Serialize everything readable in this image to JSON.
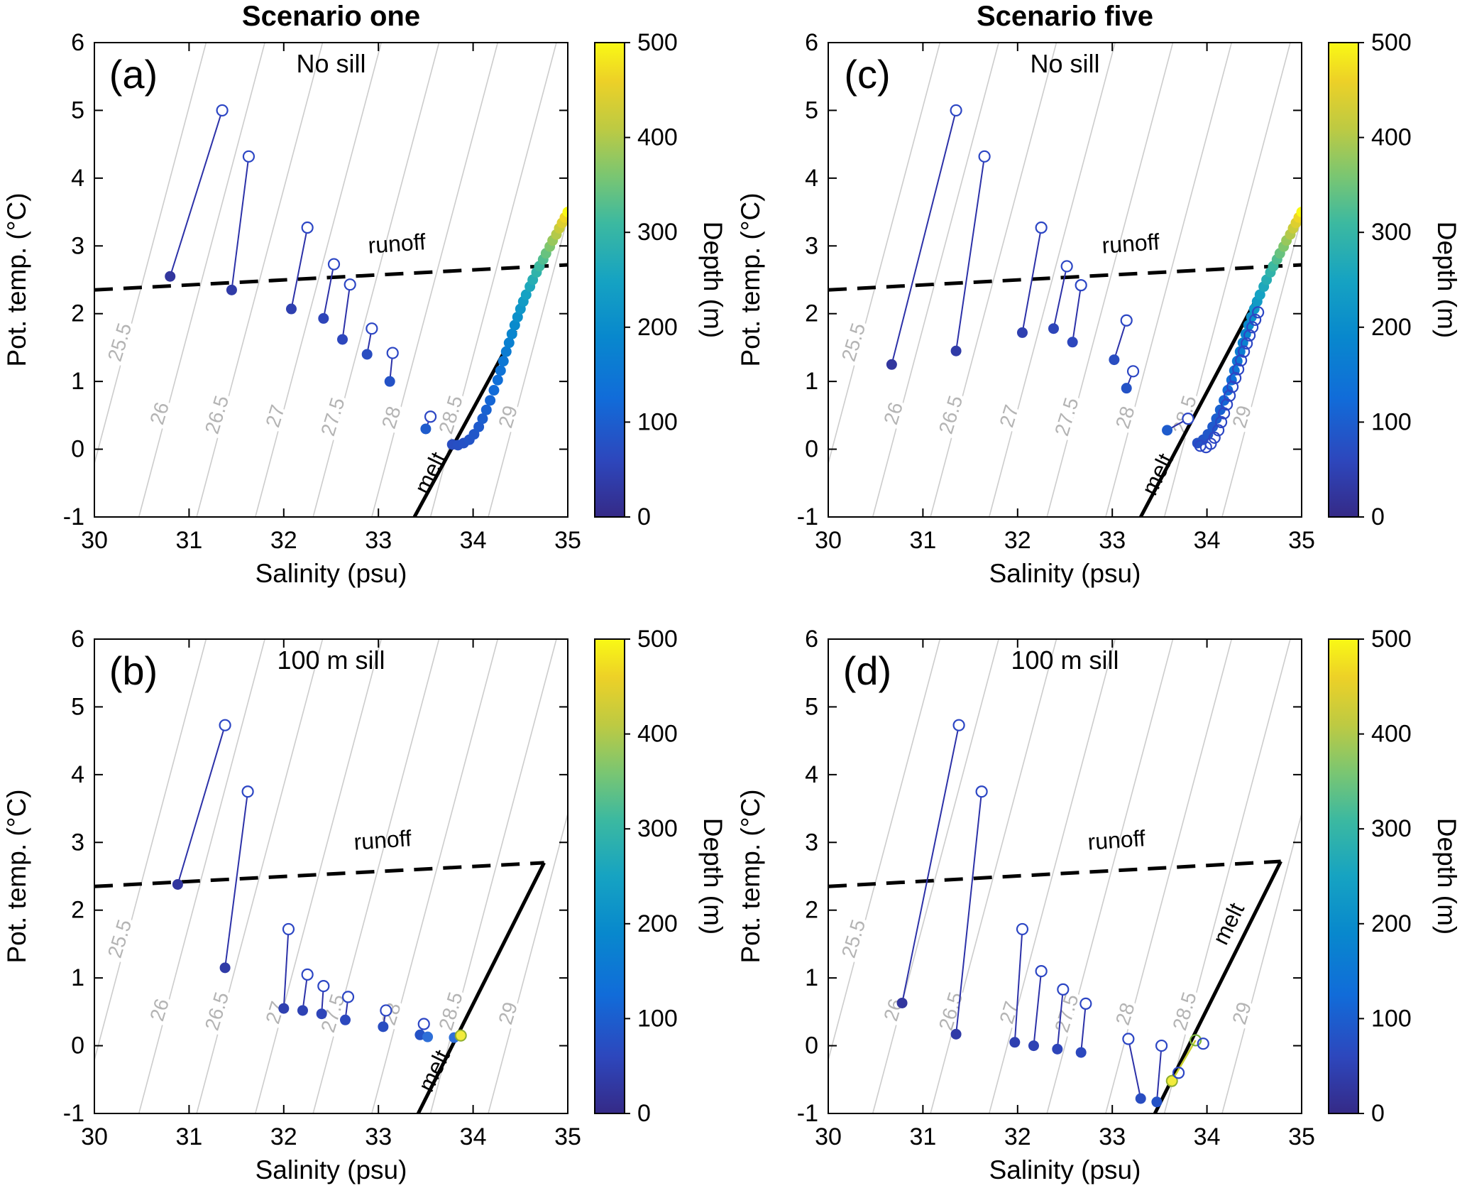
{
  "chart_data": {
    "type": "scatter",
    "title": "",
    "xlabel": "Salinity (psu)",
    "ylabel": "Pot. temp. (°C)",
    "xlim": [
      30,
      35
    ],
    "ylim": [
      -1,
      6
    ],
    "x_ticks": [
      30,
      31,
      32,
      33,
      34,
      35
    ],
    "y_ticks": [
      -1,
      0,
      1,
      2,
      3,
      4,
      5,
      6
    ],
    "grid": false,
    "colorbar": {
      "label": "Depth (m)",
      "ticks": [
        0,
        100,
        200,
        300,
        400,
        500
      ],
      "lim": [
        0,
        500
      ],
      "colormap": [
        [
          0.0,
          "#352a87"
        ],
        [
          0.12,
          "#2d47bd"
        ],
        [
          0.25,
          "#116cd9"
        ],
        [
          0.38,
          "#0888cd"
        ],
        [
          0.5,
          "#16a3c2"
        ],
        [
          0.62,
          "#3cb9a0"
        ],
        [
          0.72,
          "#7bc671"
        ],
        [
          0.82,
          "#beca42"
        ],
        [
          0.92,
          "#edd127"
        ],
        [
          1.0,
          "#f9f915"
        ]
      ]
    },
    "isopycnals": {
      "labels": [
        "25.5",
        "26",
        "26.5",
        "27",
        "27.5",
        "28",
        "28.5",
        "29"
      ],
      "s_at_tmin": [
        29.85,
        30.47,
        31.08,
        31.7,
        32.31,
        32.93,
        33.55,
        34.16
      ],
      "ds_dt": 0.19,
      "label_t": [
        1.55,
        0.5,
        0.48,
        0.46,
        0.45,
        0.44,
        0.48,
        0.45
      ],
      "line_color": "#cccccc",
      "label_color": "#b4b4b4"
    },
    "marker_colors": {
      "pair_line": "#2c31a8",
      "open_stroke": "#2c46c4",
      "special_yellow": "#f2eb3c",
      "special_yellow_edge": "#8fae2e",
      "special_green_edge": "#7ab33c",
      "plain_blue": "#2e6fd8"
    },
    "panels": [
      {
        "id": "a",
        "letter": "(a)",
        "title": "No sill",
        "column_title": "Scenario one",
        "row": 0,
        "col": 0,
        "runoff": {
          "label": "runoff",
          "x": [
            30,
            35
          ],
          "y": [
            2.35,
            2.72
          ],
          "label_pos": [
            33.2,
            2.92
          ],
          "label_rot": -4
        },
        "melt": {
          "label": "melt",
          "x": [
            33.38,
            34.45
          ],
          "y": [
            -1,
            1.75
          ],
          "label_pos": [
            33.62,
            -0.4
          ],
          "label_rot": -64
        },
        "pairs": [
          {
            "o": [
              31.35,
              5.0
            ],
            "f": [
              30.8,
              2.55
            ],
            "d": 25
          },
          {
            "o": [
              31.63,
              4.32
            ],
            "f": [
              31.45,
              2.35
            ],
            "d": 35
          },
          {
            "o": [
              32.25,
              3.27
            ],
            "f": [
              32.08,
              2.07
            ],
            "d": 45
          },
          {
            "o": [
              32.53,
              2.73
            ],
            "f": [
              32.42,
              1.93
            ],
            "d": 55
          },
          {
            "o": [
              32.7,
              2.43
            ],
            "f": [
              32.62,
              1.62
            ],
            "d": 60
          },
          {
            "o": [
              32.93,
              1.78
            ],
            "f": [
              32.88,
              1.4
            ],
            "d": 70
          },
          {
            "o": [
              33.15,
              1.42
            ],
            "f": [
              33.12,
              1.0
            ],
            "d": 80
          },
          {
            "o": [
              33.55,
              0.48
            ],
            "f": [
              33.5,
              0.3
            ],
            "d": 95
          }
        ],
        "mixing_curve": [
          [
            33.78,
            0.07,
            70
          ],
          [
            33.84,
            0.06,
            74
          ],
          [
            33.9,
            0.09,
            78
          ],
          [
            33.96,
            0.14,
            83
          ],
          [
            34.01,
            0.22,
            88
          ],
          [
            34.06,
            0.33,
            94
          ],
          [
            34.1,
            0.45,
            100
          ],
          [
            34.14,
            0.58,
            107
          ],
          [
            34.18,
            0.72,
            115
          ],
          [
            34.22,
            0.87,
            123
          ],
          [
            34.26,
            1.02,
            132
          ],
          [
            34.29,
            1.16,
            141
          ],
          [
            34.32,
            1.3,
            151
          ],
          [
            34.35,
            1.44,
            161
          ],
          [
            34.38,
            1.57,
            172
          ],
          [
            34.41,
            1.7,
            183
          ],
          [
            34.44,
            1.83,
            195
          ],
          [
            34.47,
            1.95,
            207
          ],
          [
            34.5,
            2.07,
            220
          ],
          [
            34.53,
            2.18,
            233
          ],
          [
            34.56,
            2.28,
            247
          ],
          [
            34.6,
            2.4,
            262
          ],
          [
            34.63,
            2.5,
            277
          ],
          [
            34.67,
            2.61,
            293
          ],
          [
            34.7,
            2.7,
            310
          ],
          [
            34.74,
            2.8,
            327
          ],
          [
            34.77,
            2.89,
            345
          ],
          [
            34.81,
            2.99,
            363
          ],
          [
            34.84,
            3.08,
            382
          ],
          [
            34.88,
            3.17,
            402
          ],
          [
            34.91,
            3.26,
            422
          ],
          [
            34.94,
            3.34,
            443
          ],
          [
            34.97,
            3.42,
            465
          ],
          [
            35.0,
            3.5,
            500
          ]
        ],
        "open_curve": [],
        "special_points": [],
        "special_segments": []
      },
      {
        "id": "c",
        "letter": "(c)",
        "title": "No sill",
        "column_title": "Scenario five",
        "row": 0,
        "col": 1,
        "runoff": {
          "label": "runoff",
          "x": [
            30,
            35
          ],
          "y": [
            2.35,
            2.72
          ],
          "label_pos": [
            33.2,
            2.92
          ],
          "label_rot": -4
        },
        "melt": {
          "label": "melt",
          "x": [
            33.3,
            34.8
          ],
          "y": [
            -1,
            2.95
          ],
          "label_pos": [
            33.55,
            -0.42
          ],
          "label_rot": -64
        },
        "pairs": [
          {
            "o": [
              31.35,
              5.0
            ],
            "f": [
              30.67,
              1.25
            ],
            "d": 25
          },
          {
            "o": [
              31.65,
              4.32
            ],
            "f": [
              31.35,
              1.45
            ],
            "d": 35
          },
          {
            "o": [
              32.25,
              3.27
            ],
            "f": [
              32.05,
              1.72
            ],
            "d": 45
          },
          {
            "o": [
              32.52,
              2.7
            ],
            "f": [
              32.38,
              1.78
            ],
            "d": 55
          },
          {
            "o": [
              32.67,
              2.42
            ],
            "f": [
              32.58,
              1.58
            ],
            "d": 60
          },
          {
            "o": [
              33.15,
              1.9
            ],
            "f": [
              33.02,
              1.32
            ],
            "d": 70
          },
          {
            "o": [
              33.22,
              1.15
            ],
            "f": [
              33.15,
              0.9
            ],
            "d": 80
          },
          {
            "o": [
              33.8,
              0.45
            ],
            "f": [
              33.58,
              0.28
            ],
            "d": 95
          }
        ],
        "mixing_curve": [
          [
            33.9,
            0.09,
            78
          ],
          [
            33.96,
            0.14,
            83
          ],
          [
            34.01,
            0.22,
            88
          ],
          [
            34.06,
            0.33,
            94
          ],
          [
            34.1,
            0.45,
            100
          ],
          [
            34.14,
            0.58,
            107
          ],
          [
            34.18,
            0.72,
            115
          ],
          [
            34.22,
            0.87,
            123
          ],
          [
            34.26,
            1.02,
            132
          ],
          [
            34.29,
            1.16,
            141
          ],
          [
            34.32,
            1.3,
            151
          ],
          [
            34.35,
            1.44,
            161
          ],
          [
            34.38,
            1.57,
            172
          ],
          [
            34.41,
            1.7,
            183
          ],
          [
            34.44,
            1.83,
            195
          ],
          [
            34.47,
            1.95,
            207
          ],
          [
            34.5,
            2.07,
            220
          ],
          [
            34.53,
            2.18,
            233
          ],
          [
            34.56,
            2.28,
            247
          ],
          [
            34.6,
            2.4,
            262
          ],
          [
            34.63,
            2.5,
            277
          ],
          [
            34.67,
            2.61,
            293
          ],
          [
            34.7,
            2.7,
            310
          ],
          [
            34.74,
            2.8,
            327
          ],
          [
            34.77,
            2.89,
            345
          ],
          [
            34.81,
            2.99,
            363
          ],
          [
            34.84,
            3.08,
            382
          ],
          [
            34.88,
            3.17,
            402
          ],
          [
            34.91,
            3.26,
            422
          ],
          [
            34.94,
            3.34,
            443
          ],
          [
            34.97,
            3.42,
            465
          ],
          [
            35.0,
            3.5,
            500
          ]
        ],
        "open_curve": [
          [
            33.93,
            0.05
          ],
          [
            33.99,
            0.03
          ],
          [
            34.04,
            0.08
          ],
          [
            34.08,
            0.17
          ],
          [
            34.12,
            0.28
          ],
          [
            34.15,
            0.4
          ],
          [
            34.18,
            0.53
          ],
          [
            34.21,
            0.66
          ],
          [
            34.24,
            0.79
          ],
          [
            34.27,
            0.92
          ],
          [
            34.3,
            1.05
          ],
          [
            34.33,
            1.18
          ],
          [
            34.36,
            1.31
          ],
          [
            34.39,
            1.44
          ],
          [
            34.42,
            1.56
          ],
          [
            34.45,
            1.68
          ],
          [
            34.48,
            1.8
          ],
          [
            34.51,
            1.91
          ],
          [
            34.54,
            2.02
          ]
        ],
        "special_points": [],
        "special_segments": []
      },
      {
        "id": "b",
        "letter": "(b)",
        "title": "100 m sill",
        "column_title": null,
        "row": 1,
        "col": 0,
        "runoff": {
          "label": "runoff",
          "x": [
            30,
            34.75
          ],
          "y": [
            2.35,
            2.7
          ],
          "label_pos": [
            33.05,
            2.92
          ],
          "label_rot": -4
        },
        "melt": {
          "label": "melt",
          "x": [
            33.42,
            34.75
          ],
          "y": [
            -1,
            2.7
          ],
          "label_pos": [
            33.66,
            -0.42
          ],
          "label_rot": -64
        },
        "pairs": [
          {
            "o": [
              31.38,
              4.73
            ],
            "f": [
              30.88,
              2.38
            ],
            "d": 25
          },
          {
            "o": [
              31.62,
              3.75
            ],
            "f": [
              31.38,
              1.15
            ],
            "d": 35
          },
          {
            "o": [
              32.05,
              1.72
            ],
            "f": [
              32.0,
              0.55
            ],
            "d": 45
          },
          {
            "o": [
              32.25,
              1.05
            ],
            "f": [
              32.2,
              0.52
            ],
            "d": 50
          },
          {
            "o": [
              32.42,
              0.88
            ],
            "f": [
              32.4,
              0.47
            ],
            "d": 55
          },
          {
            "o": [
              32.68,
              0.72
            ],
            "f": [
              32.65,
              0.38
            ],
            "d": 62
          },
          {
            "o": [
              33.08,
              0.52
            ],
            "f": [
              33.05,
              0.28
            ],
            "d": 70
          },
          {
            "o": [
              33.48,
              0.32
            ],
            "f": [
              33.44,
              0.16
            ],
            "d": 80
          }
        ],
        "mixing_curve": [],
        "open_curve": [],
        "special_points": [
          {
            "pos": [
              33.52,
              0.13
            ],
            "type": "filled",
            "fill": "#2e6fd8"
          },
          {
            "pos": [
              33.8,
              0.12
            ],
            "type": "filled",
            "fill": "#2e6fd8"
          },
          {
            "pos": [
              33.87,
              0.15
            ],
            "type": "filled",
            "fill": "#f2eb3c",
            "stroke": "#8fae2e"
          }
        ],
        "special_segments": [
          {
            "from": [
              33.8,
              0.12
            ],
            "to": [
              33.87,
              0.15
            ],
            "color": "#b9c832"
          }
        ]
      },
      {
        "id": "d",
        "letter": "(d)",
        "title": "100 m sill",
        "column_title": null,
        "row": 1,
        "col": 1,
        "runoff": {
          "label": "runoff",
          "x": [
            30,
            34.78
          ],
          "y": [
            2.35,
            2.72
          ],
          "label_pos": [
            33.05,
            2.92
          ],
          "label_rot": -4
        },
        "melt": {
          "label": "melt",
          "x": [
            33.45,
            34.78
          ],
          "y": [
            -1,
            2.72
          ],
          "label_pos": [
            34.3,
            1.75
          ],
          "label_rot": -64
        },
        "pairs": [
          {
            "o": [
              31.38,
              4.73
            ],
            "f": [
              30.78,
              0.63
            ],
            "d": 25
          },
          {
            "o": [
              31.62,
              3.75
            ],
            "f": [
              31.35,
              0.17
            ],
            "d": 35
          },
          {
            "o": [
              32.05,
              1.72
            ],
            "f": [
              31.97,
              0.05
            ],
            "d": 45
          },
          {
            "o": [
              32.25,
              1.1
            ],
            "f": [
              32.17,
              0.0
            ],
            "d": 50
          },
          {
            "o": [
              32.48,
              0.83
            ],
            "f": [
              32.42,
              -0.05
            ],
            "d": 55
          },
          {
            "o": [
              32.72,
              0.62
            ],
            "f": [
              32.67,
              -0.1
            ],
            "d": 62
          },
          {
            "o": [
              33.17,
              0.1
            ],
            "f": [
              33.3,
              -0.78
            ],
            "d": 70
          },
          {
            "o": [
              33.52,
              0.0
            ],
            "f": [
              33.47,
              -0.83
            ],
            "d": 80
          }
        ],
        "mixing_curve": [],
        "open_curve": [],
        "special_points": [
          {
            "pos": [
              33.63,
              -0.52
            ],
            "type": "filled",
            "fill": "#f2eb3c",
            "stroke": "#8fae2e"
          },
          {
            "pos": [
              33.88,
              0.08
            ],
            "type": "open",
            "stroke": "#7ab33c"
          },
          {
            "pos": [
              33.96,
              0.03
            ],
            "type": "open",
            "stroke": "#2c46c4"
          },
          {
            "pos": [
              33.7,
              -0.4
            ],
            "type": "open",
            "stroke": "#2c46c4"
          }
        ],
        "special_segments": [
          {
            "from": [
              33.63,
              -0.52
            ],
            "to": [
              33.88,
              0.08
            ],
            "color": "#c9cf30"
          }
        ]
      }
    ]
  }
}
